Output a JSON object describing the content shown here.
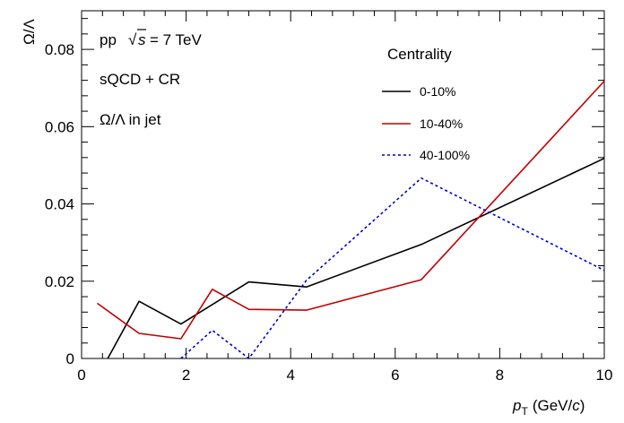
{
  "chart_data": {
    "type": "line",
    "xlabel": {
      "main": "p",
      "sub": "T",
      "unit": "(GeV/",
      "unit_italic": "c",
      "close": ")"
    },
    "ylabel": "Ω/Λ",
    "xlim": [
      0,
      10
    ],
    "ylim": [
      0,
      0.09
    ],
    "x_ticks": [
      0,
      2,
      4,
      6,
      8,
      10
    ],
    "x_tick_labels": [
      "0",
      "2",
      "4",
      "6",
      "8",
      "10"
    ],
    "y_ticks": [
      0,
      0.02,
      0.04,
      0.06,
      0.08
    ],
    "y_tick_labels": [
      "0",
      "0.02",
      "0.04",
      "0.06",
      "0.08"
    ],
    "grid": false,
    "annotations": {
      "system": "pp",
      "sqrt_symbol": "√",
      "sqrt_var": "s",
      "energy": "= 7 TeV",
      "model": "sQCD + CR",
      "ratio_label": "Ω/Λ in jet"
    },
    "legend": {
      "title": "Centrality",
      "position": "top-right"
    },
    "series": [
      {
        "name": "0-10%",
        "color": "#000000",
        "dash": "solid",
        "x": [
          0.5,
          1.1,
          1.9,
          3.2,
          4.3,
          6.5,
          10.0
        ],
        "y": [
          0.0,
          0.0148,
          0.0089,
          0.0198,
          0.0185,
          0.0295,
          0.0518
        ]
      },
      {
        "name": "10-40%",
        "color": "#c00000",
        "dash": "solid",
        "x": [
          0.3,
          1.1,
          1.9,
          2.5,
          3.2,
          4.3,
          6.5,
          10.0
        ],
        "y": [
          0.0143,
          0.0065,
          0.0051,
          0.0179,
          0.0127,
          0.0125,
          0.0204,
          0.0718
        ]
      },
      {
        "name": "40-100%",
        "color": "#0000cc",
        "dash": "dotted",
        "x": [
          1.9,
          2.5,
          3.2,
          4.3,
          6.5,
          10.0
        ],
        "y": [
          0.0,
          0.0073,
          0.0,
          0.0202,
          0.0467,
          0.0228
        ]
      }
    ]
  }
}
